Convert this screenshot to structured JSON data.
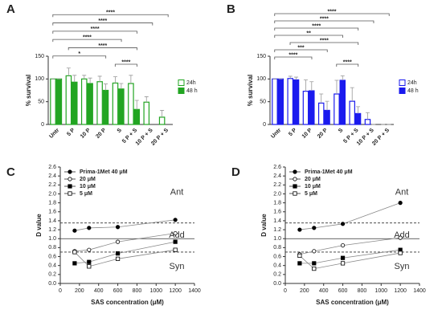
{
  "chart_data": [
    {
      "type": "bar",
      "panel": "A",
      "y_label": "% survival",
      "categories": [
        "Untr",
        "5 P",
        "10 P",
        "20 P",
        "S",
        "5 P + S",
        "10 P + S",
        "20 P + S"
      ],
      "series": [
        {
          "name": "24h",
          "color": "#22a522",
          "filled": false,
          "values": [
            100,
            107,
            100,
            94,
            91,
            90,
            49,
            16
          ],
          "errors": [
            0,
            17,
            8,
            12,
            14,
            18,
            12,
            15
          ]
        },
        {
          "name": "48 h",
          "color": "#22a522",
          "filled": true,
          "values": [
            100,
            93,
            90,
            75,
            78,
            33,
            null,
            null
          ],
          "errors": [
            0,
            15,
            12,
            14,
            12,
            20,
            null,
            null
          ]
        }
      ],
      "ylim": [
        0,
        150
      ],
      "yticks": [
        0,
        50,
        100,
        150
      ],
      "brackets": [
        {
          "label": "****",
          "from": 0,
          "to": 7
        },
        {
          "label": "****",
          "from": 0,
          "to": 6
        },
        {
          "label": "****",
          "from": 0,
          "to": 5
        },
        {
          "label": "****",
          "from": 0,
          "to": 4
        },
        {
          "label": "****",
          "from": 1,
          "to": 5
        },
        {
          "label": "*",
          "from": 0,
          "to": 3
        },
        {
          "label": "****",
          "from": 4,
          "to": 5
        }
      ]
    },
    {
      "type": "bar",
      "panel": "B",
      "y_label": "% survival",
      "categories": [
        "Untr",
        "5 P",
        "10 P",
        "20 P",
        "S",
        "5 P + S",
        "10 P + S",
        "20 P + S"
      ],
      "series": [
        {
          "name": "24h",
          "color": "#1a1aee",
          "filled": false,
          "values": [
            100,
            101,
            73,
            47,
            67,
            51,
            11,
            0
          ],
          "errors": [
            0,
            5,
            25,
            20,
            30,
            30,
            15,
            0
          ]
        },
        {
          "name": "48 h",
          "color": "#1a1aee",
          "filled": true,
          "values": [
            100,
            98,
            74,
            31,
            97,
            24,
            0,
            0
          ],
          "errors": [
            0,
            6,
            20,
            20,
            10,
            15,
            0,
            0
          ]
        }
      ],
      "ylim": [
        0,
        150
      ],
      "yticks": [
        0,
        50,
        100,
        150
      ],
      "brackets": [
        {
          "label": "****",
          "from": 0,
          "to": 7
        },
        {
          "label": "****",
          "from": 0,
          "to": 6
        },
        {
          "label": "****",
          "from": 0,
          "to": 5
        },
        {
          "label": "**",
          "from": 0,
          "to": 4
        },
        {
          "label": "****",
          "from": 1,
          "to": 5
        },
        {
          "label": "***",
          "from": 0,
          "to": 3
        },
        {
          "label": "****",
          "from": 0,
          "to": 2
        },
        {
          "label": "****",
          "from": 4,
          "to": 5
        }
      ]
    },
    {
      "type": "line",
      "panel": "C",
      "x_label": "SAS concentration (μM)",
      "y_label": "D value",
      "x": [
        150,
        300,
        600,
        1200
      ],
      "series": [
        {
          "name": "Prima-1Met 40 μM",
          "color": "#000000",
          "marker": "circle",
          "filled": true,
          "values": [
            1.18,
            1.24,
            1.26,
            1.42
          ]
        },
        {
          "name": "20 μM",
          "color": "#000000",
          "marker": "circle",
          "filled": false,
          "values": [
            0.72,
            0.75,
            0.93,
            1.12
          ]
        },
        {
          "name": "10 μM",
          "color": "#000000",
          "marker": "square",
          "filled": true,
          "values": [
            0.45,
            0.48,
            0.67,
            0.93
          ]
        },
        {
          "name": "5 μM",
          "color": "#000000",
          "marker": "square",
          "filled": false,
          "values": [
            0.7,
            0.38,
            0.55,
            0.75
          ]
        }
      ],
      "xlim": [
        0,
        1400
      ],
      "xticks": [
        0,
        200,
        400,
        600,
        800,
        1000,
        1200,
        1400
      ],
      "ylim": [
        0,
        2.6
      ],
      "yticks": [
        {
          "value": 0,
          "label": "0.0"
        },
        0.2,
        0.4,
        0.6,
        0.8,
        {
          "value": 1,
          "label": "1.0"
        },
        1.2,
        1.4,
        1.6,
        1.8,
        {
          "value": 2,
          "label": "2.0"
        },
        2.2,
        2.4,
        2.6
      ],
      "reference_lines": [
        {
          "value": 1.35,
          "style": "dashed"
        },
        {
          "value": 1,
          "style": "solid"
        },
        {
          "value": 0.7,
          "style": "dashed"
        }
      ],
      "annotations": [
        "Ant",
        "Add",
        "Syn"
      ]
    },
    {
      "type": "line",
      "panel": "D",
      "x_label": "SAS concentration (μM)",
      "y_label": "D value",
      "x": [
        150,
        300,
        600,
        1200
      ],
      "series": [
        {
          "name": "Prima-1Met 40 μM",
          "color": "#000000",
          "marker": "circle",
          "filled": true,
          "values": [
            1.2,
            1.24,
            1.33,
            1.8
          ]
        },
        {
          "name": "20 μM",
          "color": "#000000",
          "marker": "circle",
          "filled": false,
          "values": [
            0.65,
            0.72,
            0.85,
            1.02
          ]
        },
        {
          "name": "10 μM",
          "color": "#000000",
          "marker": "square",
          "filled": true,
          "values": [
            0.45,
            0.45,
            0.57,
            0.75
          ]
        },
        {
          "name": "5 μM",
          "color": "#000000",
          "marker": "square",
          "filled": false,
          "values": [
            0.62,
            0.33,
            0.45,
            0.68
          ]
        }
      ],
      "xlim": [
        0,
        1400
      ],
      "xticks": [
        0,
        200,
        400,
        600,
        800,
        1000,
        1200,
        1400
      ],
      "ylim": [
        0,
        2.6
      ],
      "yticks": [
        {
          "value": 0,
          "label": "0.0"
        },
        0.2,
        0.4,
        0.6,
        0.8,
        {
          "value": 1,
          "label": "1.0"
        },
        1.2,
        1.4,
        1.6,
        1.8,
        {
          "value": 2,
          "label": "2.0"
        },
        2.2,
        2.4,
        2.6
      ],
      "reference_lines": [
        {
          "value": 1.35,
          "style": "dashed"
        },
        {
          "value": 1,
          "style": "solid"
        },
        {
          "value": 0.7,
          "style": "dashed"
        }
      ],
      "annotations": [
        "Ant",
        "Add",
        "Syn"
      ]
    }
  ]
}
